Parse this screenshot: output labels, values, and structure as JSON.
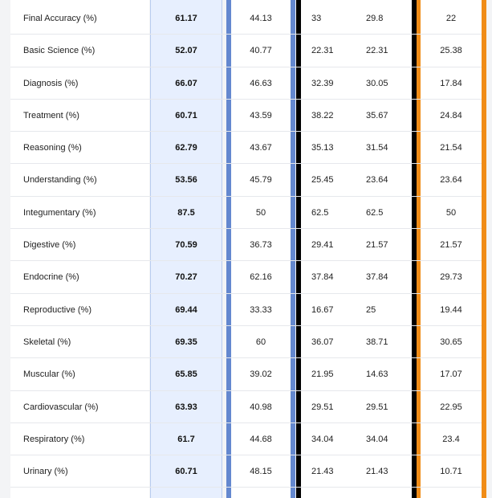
{
  "table": {
    "rows": [
      {
        "label": "Final Accuracy (%)",
        "ours": "61.17",
        "a": "44.13",
        "b1": "33",
        "b2": "29.8",
        "c": "22"
      },
      {
        "label": "Basic Science (%)",
        "ours": "52.07",
        "a": "40.77",
        "b1": "22.31",
        "b2": "22.31",
        "c": "25.38"
      },
      {
        "label": "Diagnosis (%)",
        "ours": "66.07",
        "a": "46.63",
        "b1": "32.39",
        "b2": "30.05",
        "c": "17.84"
      },
      {
        "label": "Treatment (%)",
        "ours": "60.71",
        "a": "43.59",
        "b1": "38.22",
        "b2": "35.67",
        "c": "24.84"
      },
      {
        "label": "Reasoning (%)",
        "ours": "62.79",
        "a": "43.67",
        "b1": "35.13",
        "b2": "31.54",
        "c": "21.54"
      },
      {
        "label": "Understanding (%)",
        "ours": "53.56",
        "a": "45.79",
        "b1": "25.45",
        "b2": "23.64",
        "c": "23.64"
      },
      {
        "label": "Integumentary (%)",
        "ours": "87.5",
        "a": "50",
        "b1": "62.5",
        "b2": "62.5",
        "c": "50"
      },
      {
        "label": "Digestive (%)",
        "ours": "70.59",
        "a": "36.73",
        "b1": "29.41",
        "b2": "21.57",
        "c": "21.57"
      },
      {
        "label": "Endocrine (%)",
        "ours": "70.27",
        "a": "62.16",
        "b1": "37.84",
        "b2": "37.84",
        "c": "29.73"
      },
      {
        "label": "Reproductive (%)",
        "ours": "69.44",
        "a": "33.33",
        "b1": "16.67",
        "b2": "25",
        "c": "19.44"
      },
      {
        "label": "Skeletal (%)",
        "ours": "69.35",
        "a": "60",
        "b1": "36.07",
        "b2": "38.71",
        "c": "30.65"
      },
      {
        "label": "Muscular (%)",
        "ours": "65.85",
        "a": "39.02",
        "b1": "21.95",
        "b2": "14.63",
        "c": "17.07"
      },
      {
        "label": "Cardiovascular (%)",
        "ours": "63.93",
        "a": "40.98",
        "b1": "29.51",
        "b2": "29.51",
        "c": "22.95"
      },
      {
        "label": "Respiratory (%)",
        "ours": "61.7",
        "a": "44.68",
        "b1": "34.04",
        "b2": "34.04",
        "c": "23.4"
      },
      {
        "label": "Urinary (%)",
        "ours": "60.71",
        "a": "48.15",
        "b1": "21.43",
        "b2": "21.43",
        "c": "10.71"
      }
    ]
  },
  "colors": {
    "highlight_column": "#e7effe",
    "blue_bar": "#6488cf",
    "black_bar": "#000000",
    "orange_bar": "#f08c17"
  }
}
